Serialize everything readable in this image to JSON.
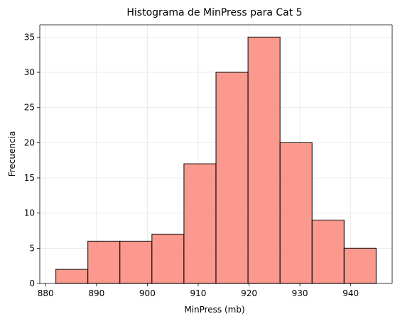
{
  "chart_data": {
    "type": "bar",
    "title": "Histograma de MinPress para Cat 5",
    "xlabel": "MinPress (mb)",
    "ylabel": "Frecuencia",
    "bins": [
      {
        "start": 882.0,
        "end": 888.3,
        "count": 2
      },
      {
        "start": 888.3,
        "end": 894.6,
        "count": 6
      },
      {
        "start": 894.6,
        "end": 900.9,
        "count": 6
      },
      {
        "start": 900.9,
        "end": 907.2,
        "count": 7
      },
      {
        "start": 907.2,
        "end": 913.5,
        "count": 17
      },
      {
        "start": 913.5,
        "end": 919.8,
        "count": 30
      },
      {
        "start": 919.8,
        "end": 926.1,
        "count": 35
      },
      {
        "start": 926.1,
        "end": 932.4,
        "count": 20
      },
      {
        "start": 932.4,
        "end": 938.7,
        "count": 9
      },
      {
        "start": 938.7,
        "end": 945.0,
        "count": 5
      }
    ],
    "xlim": [
      878.85,
      948.15
    ],
    "ylim": [
      0,
      36.75
    ],
    "xticks": [
      880,
      890,
      900,
      910,
      920,
      930,
      940
    ],
    "xtick_labels": [
      "880",
      "890",
      "900",
      "910",
      "920",
      "930",
      "940"
    ],
    "yticks": [
      0,
      5,
      10,
      15,
      20,
      25,
      30,
      35
    ],
    "ytick_labels": [
      "0",
      "5",
      "10",
      "15",
      "20",
      "25",
      "30",
      "35"
    ],
    "grid": true,
    "colors": {
      "bar_fill": "#fa8072",
      "bar_edge": "#000000",
      "grid": "#b0b0b0"
    }
  }
}
